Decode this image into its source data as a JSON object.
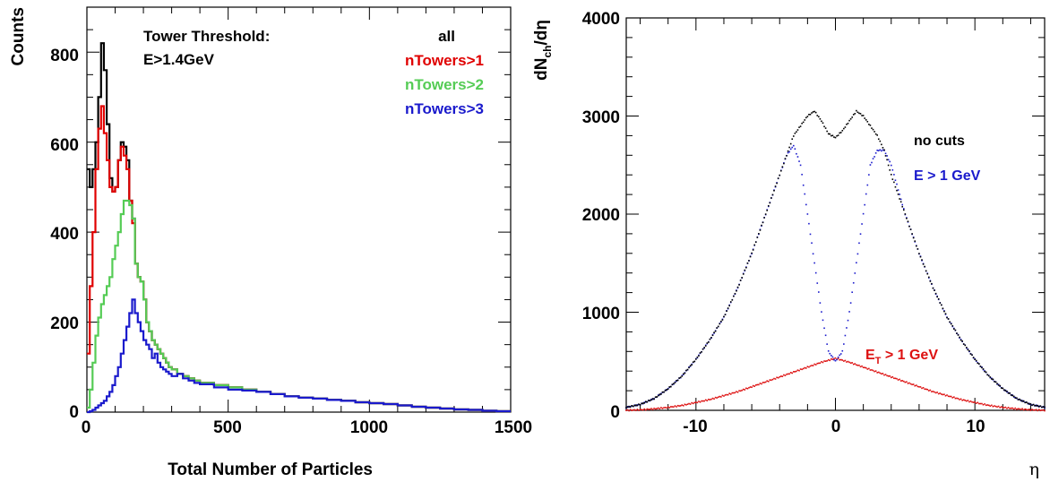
{
  "chart_data": [
    {
      "type": "line",
      "xlabel": "Total Number of Particles",
      "ylabel": "Counts",
      "xlim": [
        0,
        1500
      ],
      "ylim": [
        0,
        900
      ],
      "x_ticks": [
        0,
        500,
        1000,
        1500
      ],
      "x_tick_labels": [
        "0",
        "500",
        "1000",
        "1500"
      ],
      "y_ticks": [
        0,
        200,
        400,
        600,
        800
      ],
      "y_tick_labels": [
        "0",
        "200",
        "400",
        "600",
        "800"
      ],
      "grid": false,
      "legend_position": "top-right",
      "annotation_line1": "Tower Threshold:",
      "annotation_line2": "E>1.4GeV",
      "series": [
        {
          "name": "all",
          "color": "#000000",
          "style": "step",
          "x": [
            0,
            10,
            20,
            30,
            40,
            50,
            60,
            70,
            80,
            90,
            100,
            110,
            120,
            130,
            140,
            150,
            160,
            170,
            180,
            190,
            200,
            210,
            220,
            230,
            240,
            250,
            260,
            270,
            280,
            290,
            300,
            320,
            340,
            360,
            380,
            400,
            450,
            500,
            550,
            600,
            650,
            700,
            750,
            800,
            850,
            900,
            950,
            1000,
            1050,
            1100,
            1150,
            1200,
            1250,
            1300,
            1350,
            1400,
            1450,
            1500
          ],
          "values": [
            540,
            500,
            540,
            600,
            700,
            820,
            760,
            640,
            520,
            490,
            500,
            560,
            600,
            590,
            560,
            470,
            430,
            330,
            300,
            290,
            250,
            200,
            180,
            160,
            150,
            140,
            130,
            120,
            110,
            100,
            95,
            85,
            80,
            75,
            70,
            65,
            60,
            55,
            50,
            45,
            40,
            35,
            32,
            30,
            27,
            25,
            22,
            20,
            18,
            15,
            12,
            10,
            8,
            6,
            5,
            3,
            2,
            0
          ]
        },
        {
          "name": "nTowers>1",
          "color": "#e00000",
          "style": "step",
          "x": [
            0,
            10,
            20,
            30,
            40,
            50,
            60,
            70,
            80,
            90,
            100,
            110,
            120,
            130,
            140,
            150,
            160,
            170,
            180,
            190,
            200,
            210,
            220,
            230,
            240,
            250,
            260,
            270,
            280,
            290,
            300,
            320,
            340,
            360,
            380,
            400,
            450,
            500,
            550,
            600,
            650,
            700,
            750,
            800,
            850,
            900,
            950,
            1000,
            1050,
            1100,
            1150,
            1200,
            1250,
            1300,
            1350,
            1400,
            1450,
            1500
          ],
          "values": [
            130,
            280,
            400,
            540,
            630,
            680,
            620,
            560,
            500,
            490,
            500,
            560,
            590,
            570,
            540,
            470,
            420,
            330,
            300,
            290,
            250,
            200,
            180,
            160,
            150,
            140,
            130,
            120,
            110,
            100,
            95,
            85,
            80,
            75,
            70,
            65,
            60,
            55,
            50,
            45,
            40,
            35,
            32,
            30,
            27,
            25,
            22,
            20,
            18,
            15,
            12,
            10,
            8,
            6,
            5,
            3,
            2,
            0
          ]
        },
        {
          "name": "nTowers>2",
          "color": "#55cc55",
          "style": "step",
          "x": [
            0,
            10,
            20,
            30,
            40,
            50,
            60,
            70,
            80,
            90,
            100,
            110,
            120,
            130,
            140,
            150,
            160,
            170,
            180,
            190,
            200,
            210,
            220,
            230,
            240,
            250,
            260,
            270,
            280,
            290,
            300,
            320,
            340,
            360,
            380,
            400,
            450,
            500,
            550,
            600,
            650,
            700,
            750,
            800,
            850,
            900,
            950,
            1000,
            1050,
            1100,
            1150,
            1200,
            1250,
            1300,
            1350,
            1400,
            1450,
            1500
          ],
          "values": [
            10,
            50,
            110,
            170,
            210,
            240,
            260,
            280,
            300,
            340,
            370,
            400,
            440,
            470,
            470,
            460,
            430,
            330,
            300,
            290,
            250,
            200,
            180,
            160,
            150,
            140,
            130,
            120,
            110,
            100,
            95,
            85,
            80,
            75,
            70,
            65,
            60,
            55,
            50,
            45,
            40,
            35,
            32,
            30,
            27,
            25,
            22,
            20,
            18,
            15,
            12,
            10,
            8,
            6,
            5,
            3,
            2,
            0
          ]
        },
        {
          "name": "nTowers>3",
          "color": "#1a1acc",
          "style": "step",
          "x": [
            0,
            10,
            20,
            30,
            40,
            50,
            60,
            70,
            80,
            90,
            100,
            110,
            120,
            130,
            140,
            150,
            160,
            170,
            180,
            190,
            200,
            210,
            220,
            230,
            240,
            250,
            260,
            270,
            280,
            290,
            300,
            320,
            340,
            360,
            380,
            400,
            450,
            500,
            550,
            600,
            650,
            700,
            750,
            800,
            850,
            900,
            950,
            1000,
            1050,
            1100,
            1150,
            1200,
            1250,
            1300,
            1350,
            1400,
            1450,
            1500
          ],
          "values": [
            0,
            2,
            5,
            10,
            15,
            20,
            25,
            35,
            45,
            60,
            80,
            100,
            130,
            160,
            190,
            220,
            250,
            220,
            200,
            180,
            160,
            150,
            140,
            120,
            130,
            110,
            100,
            95,
            90,
            85,
            80,
            85,
            75,
            70,
            65,
            62,
            55,
            50,
            48,
            45,
            40,
            35,
            32,
            30,
            27,
            25,
            22,
            20,
            18,
            15,
            12,
            10,
            8,
            6,
            5,
            3,
            2,
            0
          ]
        }
      ]
    },
    {
      "type": "scatter",
      "xlabel": "η",
      "ylabel": "dN",
      "ylabel_sub": "ch",
      "ylabel_tail": "/dη",
      "xlim": [
        -15,
        15
      ],
      "ylim": [
        0,
        4000
      ],
      "x_ticks": [
        -10,
        0,
        10
      ],
      "x_tick_labels": [
        "-10",
        "0",
        "10"
      ],
      "y_ticks": [
        0,
        1000,
        2000,
        3000,
        4000
      ],
      "y_tick_labels": [
        "0",
        "1000",
        "2000",
        "3000",
        "4000"
      ],
      "grid": false,
      "series": [
        {
          "name": "no cuts",
          "color": "#000000",
          "x": [
            -15,
            -14,
            -13,
            -12,
            -11,
            -10,
            -9,
            -8,
            -7,
            -6,
            -5,
            -4,
            -3.5,
            -3,
            -2.5,
            -2,
            -1.5,
            -1,
            -0.5,
            0,
            0.5,
            1,
            1.5,
            2,
            2.5,
            3,
            3.5,
            4,
            5,
            6,
            7,
            8,
            9,
            10,
            11,
            12,
            13,
            14,
            15
          ],
          "values": [
            30,
            60,
            120,
            220,
            350,
            520,
            720,
            950,
            1250,
            1600,
            2000,
            2400,
            2600,
            2800,
            2900,
            3000,
            3050,
            2950,
            2820,
            2780,
            2850,
            2950,
            3050,
            3000,
            2900,
            2800,
            2650,
            2400,
            2000,
            1600,
            1250,
            950,
            720,
            520,
            350,
            220,
            120,
            60,
            30
          ]
        },
        {
          "name": "E > 1 GeV",
          "label": "E > 1 GeV",
          "color": "#1a1acc",
          "x": [
            -15,
            -14,
            -13,
            -12,
            -11,
            -10,
            -9,
            -8,
            -7,
            -6,
            -5,
            -4,
            -3.5,
            -3,
            -2.5,
            -2,
            -1.5,
            -1,
            -0.5,
            0,
            0.5,
            1,
            1.5,
            2,
            2.5,
            3,
            3.5,
            4,
            5,
            6,
            7,
            8,
            9,
            10,
            11,
            12,
            13,
            14,
            15
          ],
          "values": [
            30,
            60,
            120,
            220,
            350,
            520,
            720,
            950,
            1250,
            1600,
            2000,
            2400,
            2600,
            2700,
            2500,
            2000,
            1500,
            1000,
            600,
            500,
            600,
            1000,
            1500,
            2000,
            2500,
            2650,
            2650,
            2500,
            2000,
            1600,
            1250,
            950,
            720,
            520,
            350,
            220,
            120,
            60,
            30
          ]
        },
        {
          "name": "ET > 1 GeV",
          "label_base": "E",
          "label_sub": "T",
          "label_tail": " > 1 GeV",
          "color": "#dd1111",
          "x": [
            -15,
            -14,
            -13,
            -12,
            -11,
            -10,
            -9,
            -8,
            -7,
            -6,
            -5,
            -4,
            -3,
            -2,
            -1,
            0,
            1,
            2,
            3,
            4,
            5,
            6,
            7,
            8,
            9,
            10,
            11,
            12,
            13,
            14,
            15
          ],
          "values": [
            0,
            5,
            15,
            30,
            50,
            80,
            110,
            150,
            190,
            240,
            290,
            340,
            390,
            440,
            490,
            530,
            490,
            440,
            390,
            340,
            290,
            240,
            190,
            150,
            110,
            80,
            50,
            30,
            15,
            5,
            0
          ]
        }
      ]
    }
  ]
}
